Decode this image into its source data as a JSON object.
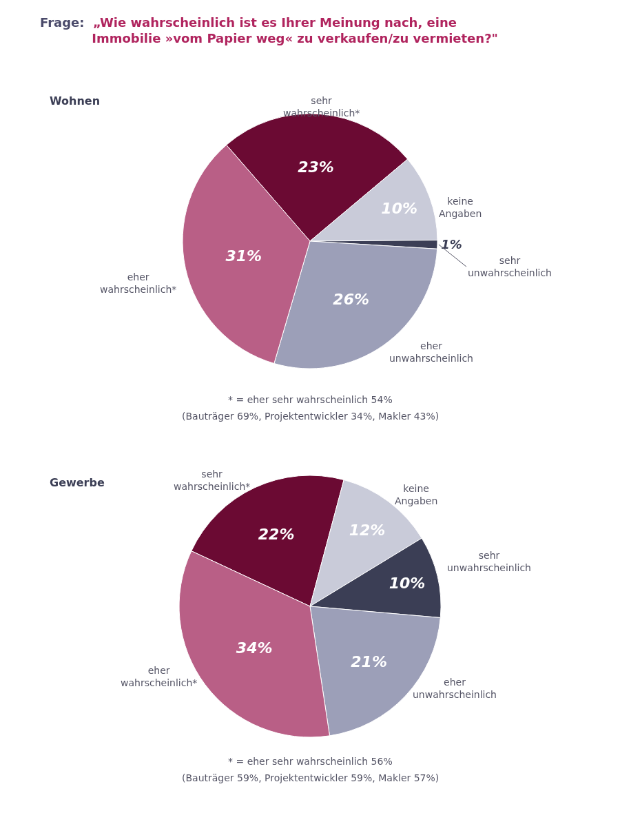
{
  "chart_data": [
    {
      "type": "pie",
      "title": "Frage: „Wie wahrscheinlich ist es Ihrer Meinung nach, eine\nImmobilie »vom Papier weg« zu verkaufen/zu vermieten?\"",
      "subtitle": "Wohnen",
      "categories": [
        "sehr\nwahrscheinlich*",
        "keine\nAngaben",
        "sehr\nunwahrscheinlich",
        "eher\nunwahrscheinlich",
        "eher\nwahrscheinlich*"
      ],
      "values": [
        23,
        10,
        1,
        26,
        31
      ],
      "value_labels": [
        "23%",
        "10%",
        "1%",
        "26%",
        "31%"
      ],
      "colors": [
        "#6b0a33",
        "#c9cbd9",
        "#3b3e55",
        "#9c9fb8",
        "#b95f86"
      ],
      "annotations": [
        "* = eher sehr wahrscheinlich 54%",
        "(Bauträger 69%, Projektentwickler 34%, Makler 43%)"
      ]
    },
    {
      "type": "pie",
      "title": "Gewerbe",
      "categories": [
        "sehr\nwahrscheinlich*",
        "keine\nAngaben",
        "sehr\nunwahrscheinlich",
        "eher\nunwahrscheinlich",
        "eher\nwahrscheinlich*"
      ],
      "values": [
        22,
        12,
        10,
        21,
        34
      ],
      "value_labels": [
        "22%",
        "12%",
        "10%",
        "21%",
        "34%"
      ],
      "colors": [
        "#6b0a33",
        "#c9cbd9",
        "#3b3e55",
        "#9c9fb8",
        "#b95f86"
      ],
      "annotations": [
        "* = eher sehr wahrscheinlich 56%",
        "(Bauträger 59%, Projektentwickler 59%, Makler 57%)"
      ]
    }
  ]
}
